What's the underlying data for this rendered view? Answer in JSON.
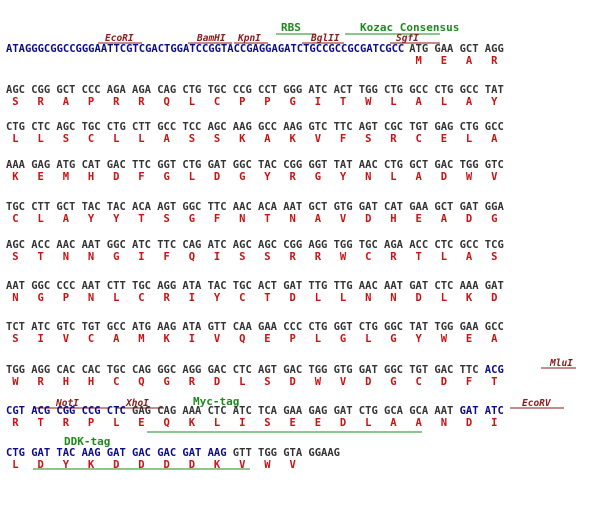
{
  "colors": {
    "vector_dna": "#0a0a8a",
    "orf_dna": "#333333",
    "amino_acid": "#cc1111",
    "restriction_site": "#8b1a1a",
    "feature": "#1e8a1e"
  },
  "features": {
    "rbs": "RBS",
    "kozac": "Kozac Consensus",
    "myc": "Myc-tag",
    "ddk": "DDK-tag"
  },
  "sites": {
    "ecori": "EcoRI",
    "bamhi": "BamHI",
    "kpni": "KpnI",
    "bglii": "BglII",
    "sgfi": "SgfI",
    "mlui": "MluI",
    "noti": "NotI",
    "xhoi": "XhoI",
    "ecorv": "EcoRV"
  },
  "rows": [
    {
      "prefix": "ATAGGGCGGCCGGGAATTCGTCGACTGGATCCGGTACCGAGGAGATCTGCCGCCGCGATCGCC",
      "codons": [
        "ATG",
        "GAA",
        "GCT",
        "AGG"
      ],
      "aas": [
        "M",
        "E",
        "A",
        "R"
      ]
    },
    {
      "codons": [
        "AGC",
        "CGG",
        "GCT",
        "CCC",
        "AGA",
        "AGA",
        "CAG",
        "CTG",
        "TGC",
        "CCG",
        "CCT",
        "GGG",
        "ATC",
        "ACT",
        "TGG",
        "CTG",
        "GCC",
        "CTG",
        "GCC",
        "TAT"
      ],
      "aas": [
        "S",
        "R",
        "A",
        "P",
        "R",
        "R",
        "Q",
        "L",
        "C",
        "P",
        "P",
        "G",
        "I",
        "T",
        "W",
        "L",
        "A",
        "L",
        "A",
        "Y"
      ]
    },
    {
      "codons": [
        "CTG",
        "CTC",
        "AGC",
        "TGC",
        "CTG",
        "CTT",
        "GCC",
        "TCC",
        "AGC",
        "AAG",
        "GCC",
        "AAG",
        "GTC",
        "TTC",
        "AGT",
        "CGC",
        "TGT",
        "GAG",
        "CTG",
        "GCC"
      ],
      "aas": [
        "L",
        "L",
        "S",
        "C",
        "L",
        "L",
        "A",
        "S",
        "S",
        "K",
        "A",
        "K",
        "V",
        "F",
        "S",
        "R",
        "C",
        "E",
        "L",
        "A"
      ]
    },
    {
      "codons": [
        "AAA",
        "GAG",
        "ATG",
        "CAT",
        "GAC",
        "TTC",
        "GGT",
        "CTG",
        "GAT",
        "GGC",
        "TAC",
        "CGG",
        "GGT",
        "TAT",
        "AAC",
        "CTG",
        "GCT",
        "GAC",
        "TGG",
        "GTC"
      ],
      "aas": [
        "K",
        "E",
        "M",
        "H",
        "D",
        "F",
        "G",
        "L",
        "D",
        "G",
        "Y",
        "R",
        "G",
        "Y",
        "N",
        "L",
        "A",
        "D",
        "W",
        "V"
      ]
    },
    {
      "codons": [
        "TGC",
        "CTT",
        "GCT",
        "TAC",
        "TAC",
        "ACA",
        "AGT",
        "GGC",
        "TTC",
        "AAC",
        "ACA",
        "AAT",
        "GCT",
        "GTG",
        "GAT",
        "CAT",
        "GAA",
        "GCT",
        "GAT",
        "GGA"
      ],
      "aas": [
        "C",
        "L",
        "A",
        "Y",
        "Y",
        "T",
        "S",
        "G",
        "F",
        "N",
        "T",
        "N",
        "A",
        "V",
        "D",
        "H",
        "E",
        "A",
        "D",
        "G"
      ]
    },
    {
      "codons": [
        "AGC",
        "ACC",
        "AAC",
        "AAT",
        "GGC",
        "ATC",
        "TTC",
        "CAG",
        "ATC",
        "AGC",
        "AGC",
        "CGG",
        "AGG",
        "TGG",
        "TGC",
        "AGA",
        "ACC",
        "CTC",
        "GCC",
        "TCG"
      ],
      "aas": [
        "S",
        "T",
        "N",
        "N",
        "G",
        "I",
        "F",
        "Q",
        "I",
        "S",
        "S",
        "R",
        "R",
        "W",
        "C",
        "R",
        "T",
        "L",
        "A",
        "S"
      ]
    },
    {
      "codons": [
        "AAT",
        "GGC",
        "CCC",
        "AAT",
        "CTT",
        "TGC",
        "AGG",
        "ATA",
        "TAC",
        "TGC",
        "ACT",
        "GAT",
        "TTG",
        "TTG",
        "AAC",
        "AAT",
        "GAT",
        "CTC",
        "AAA",
        "GAT"
      ],
      "aas": [
        "N",
        "G",
        "P",
        "N",
        "L",
        "C",
        "R",
        "I",
        "Y",
        "C",
        "T",
        "D",
        "L",
        "L",
        "N",
        "N",
        "D",
        "L",
        "K",
        "D"
      ]
    },
    {
      "codons": [
        "TCT",
        "ATC",
        "GTC",
        "TGT",
        "GCC",
        "ATG",
        "AAG",
        "ATA",
        "GTT",
        "CAA",
        "GAA",
        "CCC",
        "CTG",
        "GGT",
        "CTG",
        "GGC",
        "TAT",
        "TGG",
        "GAA",
        "GCC"
      ],
      "aas": [
        "S",
        "I",
        "V",
        "C",
        "A",
        "M",
        "K",
        "I",
        "V",
        "Q",
        "E",
        "P",
        "L",
        "G",
        "L",
        "G",
        "Y",
        "W",
        "E",
        "A"
      ]
    },
    {
      "codons": [
        "TGG",
        "AGG",
        "CAC",
        "CAC",
        "TGC",
        "CAG",
        "GGC",
        "AGG",
        "GAC",
        "CTC",
        "AGT",
        "GAC",
        "TGG",
        "GTG",
        "GAT",
        "GGC",
        "TGT",
        "GAC",
        "TTC",
        "ACG"
      ],
      "aas": [
        "W",
        "R",
        "H",
        "H",
        "C",
        "Q",
        "G",
        "R",
        "D",
        "L",
        "S",
        "D",
        "W",
        "V",
        "D",
        "G",
        "C",
        "D",
        "F",
        "T"
      ]
    },
    {
      "codons": [
        "CGT",
        "ACG",
        "CGG",
        "CCG",
        "CTC",
        "GAG",
        "CAG",
        "AAA",
        "CTC",
        "ATC",
        "TCA",
        "GAA",
        "GAG",
        "GAT",
        "CTG",
        "GCA",
        "GCA",
        "AAT",
        "GAT",
        "ATC"
      ],
      "aas": [
        "R",
        "T",
        "R",
        "P",
        "L",
        "E",
        "Q",
        "K",
        "L",
        "I",
        "S",
        "E",
        "E",
        "D",
        "L",
        "A",
        "A",
        "N",
        "D",
        "I"
      ]
    },
    {
      "codons": [
        "CTG",
        "GAT",
        "TAC",
        "AAG",
        "GAT",
        "GAC",
        "GAC",
        "GAT",
        "AAG",
        "GTT",
        "TGG",
        "GTA",
        "GGAAG"
      ],
      "aas": [
        "L",
        "D",
        "Y",
        "K",
        "D",
        "D",
        "D",
        "D",
        "K",
        "V",
        "W",
        "V",
        ""
      ]
    }
  ]
}
